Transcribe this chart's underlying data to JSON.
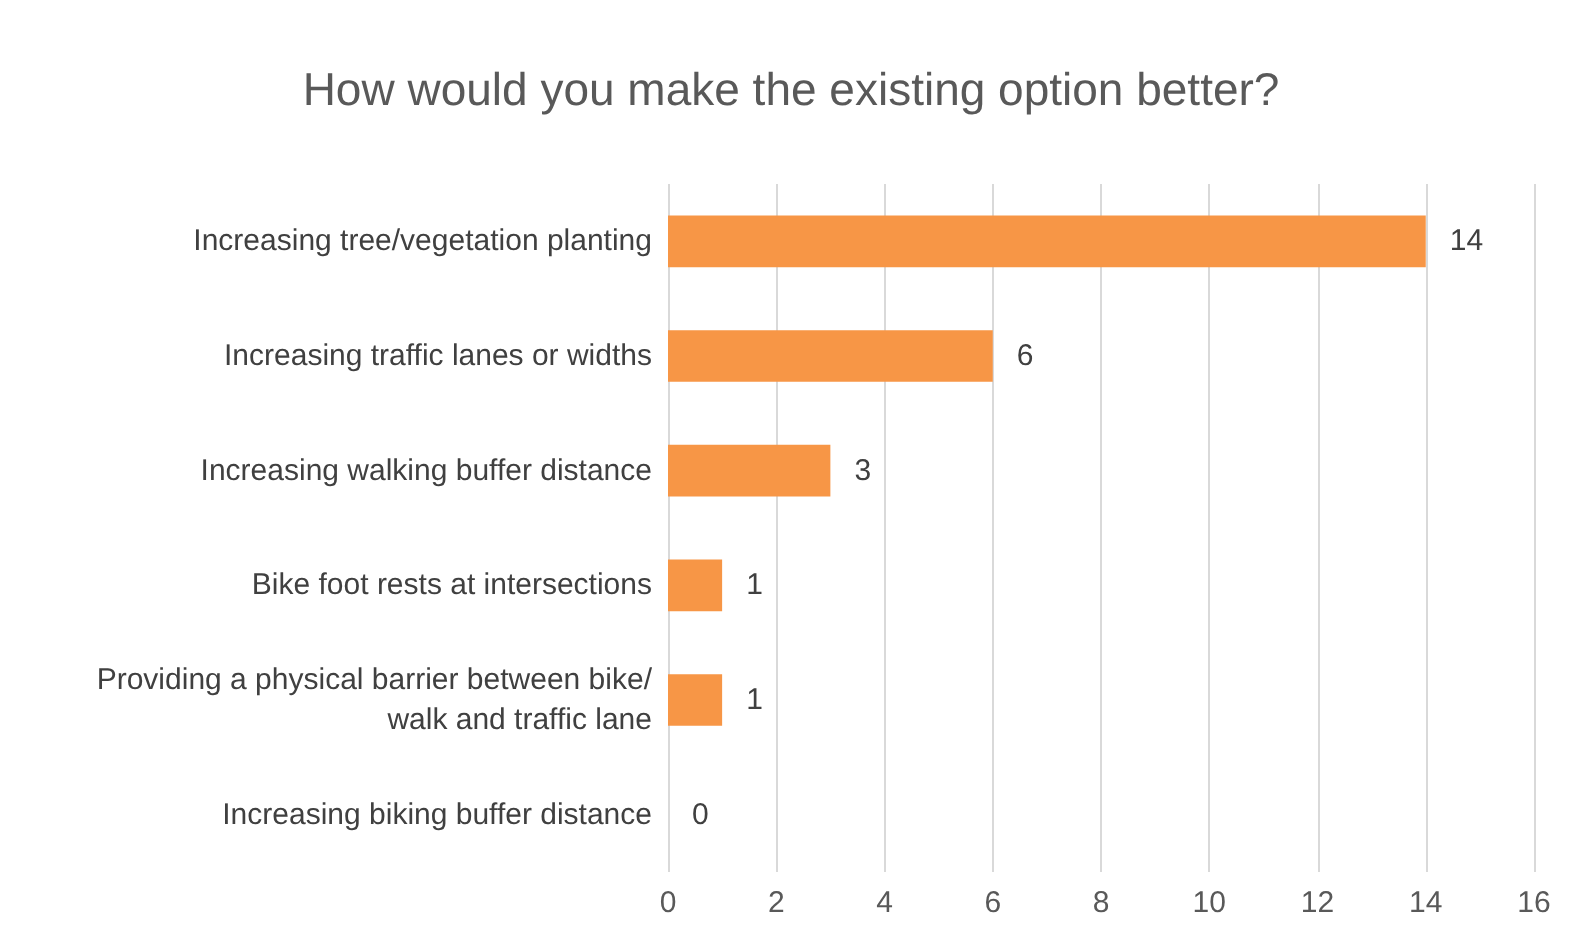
{
  "chart_data": {
    "type": "bar",
    "orientation": "horizontal",
    "title": "How would you make the existing option better?",
    "categories": [
      "Increasing tree/vegetation planting",
      "Increasing traffic lanes or widths",
      "Increasing walking buffer distance",
      "Bike foot rests at intersections",
      "Providing a physical barrier between bike/walk and traffic lane",
      "Increasing biking buffer distance"
    ],
    "values": [
      14,
      6,
      3,
      1,
      1,
      0
    ],
    "color": "#f79646",
    "xlim": [
      0,
      16
    ],
    "xticks": [
      0,
      2,
      4,
      6,
      8,
      10,
      12,
      14,
      16
    ],
    "grid": "x",
    "data_labels": true
  }
}
